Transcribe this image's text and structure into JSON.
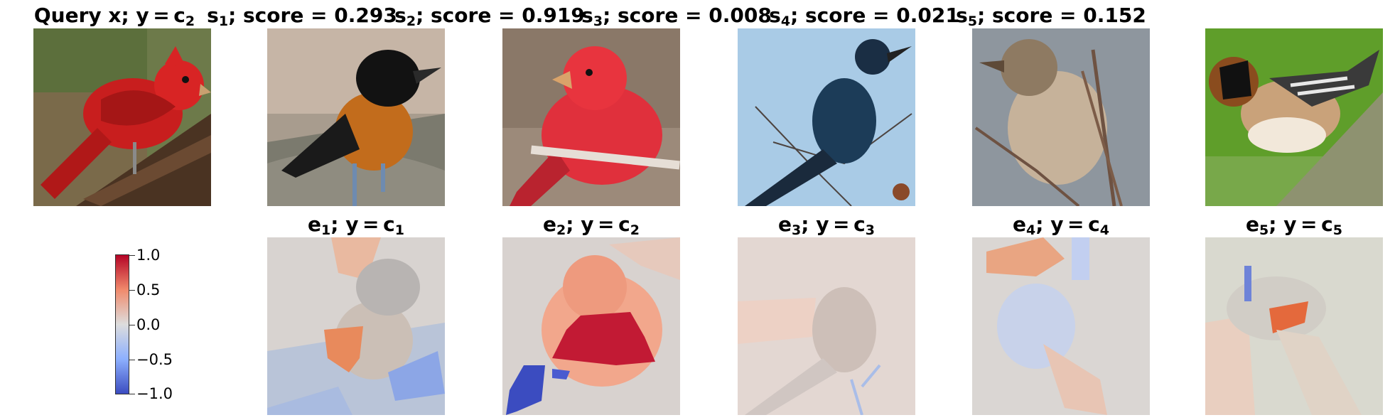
{
  "query": {
    "title_main": "Query x; y = c",
    "title_sub": "2"
  },
  "candidates": [
    {
      "s_main": "s",
      "s_idx": "1",
      "s_score": "; score = 0.293",
      "e_main": "e",
      "e_idx": "1",
      "e_y": "; y = c",
      "e_cls": "1"
    },
    {
      "s_main": "s",
      "s_idx": "2",
      "s_score": "; score = 0.919",
      "e_main": "e",
      "e_idx": "2",
      "e_y": "; y = c",
      "e_cls": "2"
    },
    {
      "s_main": "s",
      "s_idx": "3",
      "s_score": "; score = 0.008",
      "e_main": "e",
      "e_idx": "3",
      "e_y": "; y = c",
      "e_cls": "3"
    },
    {
      "s_main": "s",
      "s_idx": "4",
      "s_score": "; score = 0.021",
      "e_main": "e",
      "e_idx": "4",
      "e_y": "; y = c",
      "e_cls": "4"
    },
    {
      "s_main": "s",
      "s_idx": "5",
      "s_score": "; score = 0.152",
      "e_main": "e",
      "e_idx": "5",
      "e_y": "; y = c",
      "e_cls": "5"
    }
  ],
  "colorbar": {
    "ticks": [
      "1.0",
      "0.5",
      "0.0",
      "−0.5",
      "−1.0"
    ],
    "colormap": "coolwarm",
    "colors": {
      "high": "#b40426",
      "mid": "#dddddd",
      "low": "#3b4cc0"
    }
  }
}
